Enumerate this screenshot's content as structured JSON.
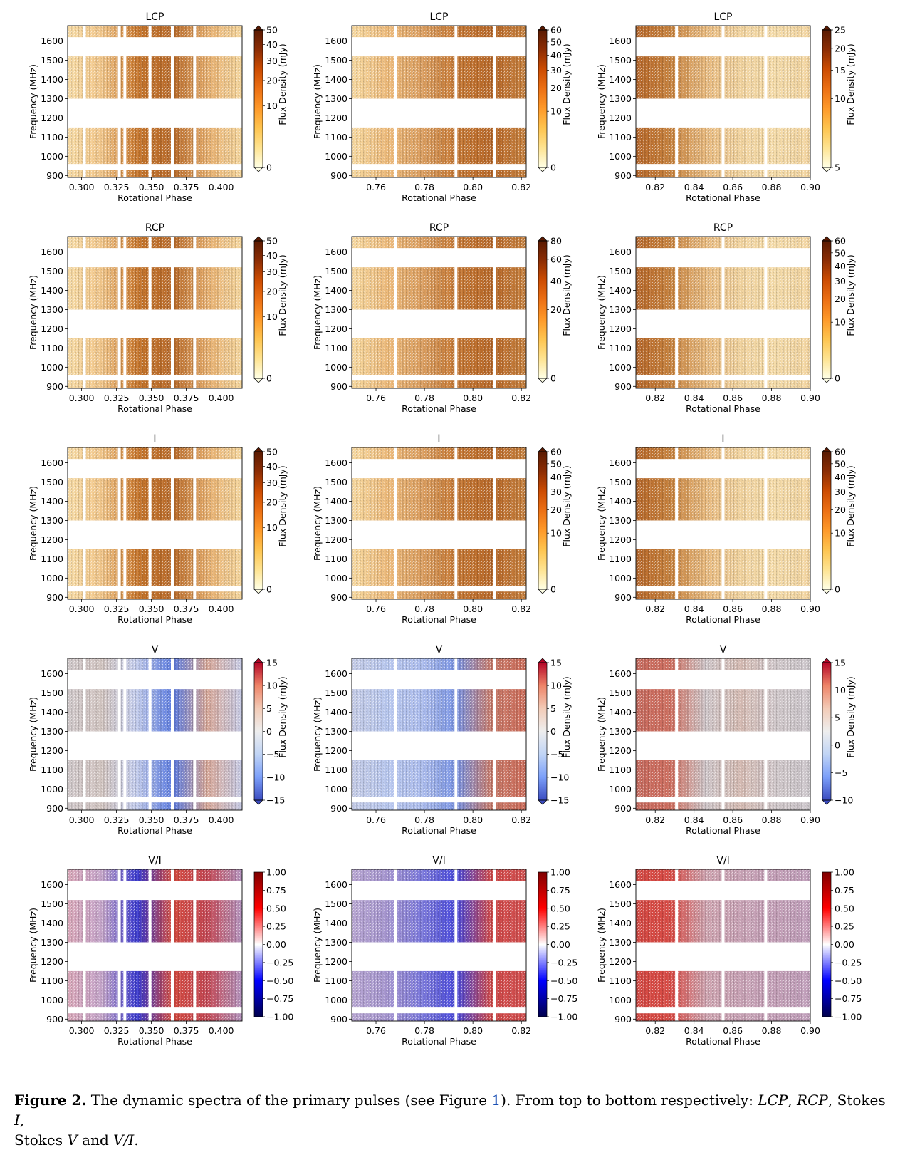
{
  "figure": {
    "rows": [
      {
        "title": "LCP",
        "cmap": "ylorbr",
        "panels": [
          {
            "xticks": [
              "0.300",
              "0.325",
              "0.350",
              "0.375",
              "0.400"
            ],
            "xlim": [
              0.29,
              0.415
            ],
            "xtickvals": [
              0.3,
              0.325,
              0.35,
              0.375,
              0.4
            ],
            "cbar": {
              "ticks": [
                "0",
                "10",
                "20",
                "30",
                "40",
                "50"
              ],
              "tickvals": [
                0,
                10,
                20,
                30,
                40,
                50
              ],
              "range": [
                0,
                50
              ],
              "scale": "pow"
            }
          },
          {
            "xticks": [
              "0.76",
              "0.78",
              "0.80",
              "0.82"
            ],
            "xlim": [
              0.75,
              0.822
            ],
            "xtickvals": [
              0.76,
              0.78,
              0.8,
              0.82
            ],
            "cbar": {
              "ticks": [
                "0",
                "10",
                "20",
                "30",
                "40",
                "50",
                "60"
              ],
              "tickvals": [
                0,
                10,
                20,
                30,
                40,
                50,
                60
              ],
              "range": [
                0,
                60
              ],
              "scale": "pow"
            }
          },
          {
            "xticks": [
              "0.82",
              "0.84",
              "0.86",
              "0.88",
              "0.90"
            ],
            "xlim": [
              0.81,
              0.9
            ],
            "xtickvals": [
              0.82,
              0.84,
              0.86,
              0.88,
              0.9
            ],
            "cbar": {
              "ticks": [
                "5",
                "10",
                "15",
                "20",
                "25"
              ],
              "tickvals": [
                5,
                10,
                15,
                20,
                25
              ],
              "range": [
                5,
                25
              ],
              "scale": "pow"
            }
          }
        ]
      },
      {
        "title": "RCP",
        "cmap": "ylorbr",
        "panels": [
          {
            "xticks": [
              "0.300",
              "0.325",
              "0.350",
              "0.375",
              "0.400"
            ],
            "xlim": [
              0.29,
              0.415
            ],
            "xtickvals": [
              0.3,
              0.325,
              0.35,
              0.375,
              0.4
            ],
            "cbar": {
              "ticks": [
                "0",
                "10",
                "20",
                "30",
                "40",
                "50"
              ],
              "tickvals": [
                0,
                10,
                20,
                30,
                40,
                50
              ],
              "range": [
                0,
                50
              ],
              "scale": "pow"
            }
          },
          {
            "xticks": [
              "0.76",
              "0.78",
              "0.80",
              "0.82"
            ],
            "xlim": [
              0.75,
              0.822
            ],
            "xtickvals": [
              0.76,
              0.78,
              0.8,
              0.82
            ],
            "cbar": {
              "ticks": [
                "0",
                "20",
                "40",
                "60",
                "80"
              ],
              "tickvals": [
                0,
                20,
                40,
                60,
                80
              ],
              "range": [
                0,
                80
              ],
              "scale": "pow"
            }
          },
          {
            "xticks": [
              "0.82",
              "0.84",
              "0.86",
              "0.88",
              "0.90"
            ],
            "xlim": [
              0.81,
              0.9
            ],
            "xtickvals": [
              0.82,
              0.84,
              0.86,
              0.88,
              0.9
            ],
            "cbar": {
              "ticks": [
                "0",
                "10",
                "20",
                "30",
                "40",
                "50",
                "60"
              ],
              "tickvals": [
                0,
                10,
                20,
                30,
                40,
                50,
                60
              ],
              "range": [
                0,
                60
              ],
              "scale": "pow"
            }
          }
        ]
      },
      {
        "title": "I",
        "cmap": "ylorbr",
        "panels": [
          {
            "xticks": [
              "0.300",
              "0.325",
              "0.350",
              "0.375",
              "0.400"
            ],
            "xlim": [
              0.29,
              0.415
            ],
            "xtickvals": [
              0.3,
              0.325,
              0.35,
              0.375,
              0.4
            ],
            "cbar": {
              "ticks": [
                "0",
                "10",
                "20",
                "30",
                "40",
                "50"
              ],
              "tickvals": [
                0,
                10,
                20,
                30,
                40,
                50
              ],
              "range": [
                0,
                50
              ],
              "scale": "pow"
            }
          },
          {
            "xticks": [
              "0.76",
              "0.78",
              "0.80",
              "0.82"
            ],
            "xlim": [
              0.75,
              0.822
            ],
            "xtickvals": [
              0.76,
              0.78,
              0.8,
              0.82
            ],
            "cbar": {
              "ticks": [
                "0",
                "10",
                "20",
                "30",
                "40",
                "50",
                "60"
              ],
              "tickvals": [
                0,
                10,
                20,
                30,
                40,
                50,
                60
              ],
              "range": [
                0,
                60
              ],
              "scale": "pow"
            }
          },
          {
            "xticks": [
              "0.82",
              "0.84",
              "0.86",
              "0.88",
              "0.90"
            ],
            "xlim": [
              0.81,
              0.9
            ],
            "xtickvals": [
              0.82,
              0.84,
              0.86,
              0.88,
              0.9
            ],
            "cbar": {
              "ticks": [
                "0",
                "10",
                "20",
                "30",
                "40",
                "50",
                "60"
              ],
              "tickvals": [
                0,
                10,
                20,
                30,
                40,
                50,
                60
              ],
              "range": [
                0,
                60
              ],
              "scale": "pow"
            }
          }
        ]
      },
      {
        "title": "V",
        "cmap": "coolwarm",
        "panels": [
          {
            "xticks": [
              "0.300",
              "0.325",
              "0.350",
              "0.375",
              "0.400"
            ],
            "xlim": [
              0.29,
              0.415
            ],
            "xtickvals": [
              0.3,
              0.325,
              0.35,
              0.375,
              0.4
            ],
            "cbar": {
              "ticks": [
                "−15",
                "−10",
                "−5",
                "0",
                "5",
                "10",
                "15"
              ],
              "tickvals": [
                -15,
                -10,
                -5,
                0,
                5,
                10,
                15
              ],
              "range": [
                -15,
                15
              ],
              "scale": "lin"
            }
          },
          {
            "xticks": [
              "0.76",
              "0.78",
              "0.80",
              "0.82"
            ],
            "xlim": [
              0.75,
              0.822
            ],
            "xtickvals": [
              0.76,
              0.78,
              0.8,
              0.82
            ],
            "cbar": {
              "ticks": [
                "−15",
                "−10",
                "−5",
                "0",
                "5",
                "10",
                "15"
              ],
              "tickvals": [
                -15,
                -10,
                -5,
                0,
                5,
                10,
                15
              ],
              "range": [
                -15,
                15
              ],
              "scale": "lin"
            }
          },
          {
            "xticks": [
              "0.82",
              "0.84",
              "0.86",
              "0.88",
              "0.90"
            ],
            "xlim": [
              0.81,
              0.9
            ],
            "xtickvals": [
              0.82,
              0.84,
              0.86,
              0.88,
              0.9
            ],
            "cbar": {
              "ticks": [
                "−10",
                "−5",
                "0",
                "5",
                "10",
                "15"
              ],
              "tickvals": [
                -10,
                -5,
                0,
                5,
                10,
                15
              ],
              "range": [
                -10,
                15
              ],
              "scale": "lin"
            }
          }
        ]
      },
      {
        "title": "V/I",
        "cmap": "seismic",
        "panels": [
          {
            "xticks": [
              "0.300",
              "0.325",
              "0.350",
              "0.375",
              "0.400"
            ],
            "xlim": [
              0.29,
              0.415
            ],
            "xtickvals": [
              0.3,
              0.325,
              0.35,
              0.375,
              0.4
            ],
            "cbar": {
              "ticks": [
                "−1.00",
                "−0.75",
                "−0.50",
                "−0.25",
                "0.00",
                "0.25",
                "0.50",
                "0.75",
                "1.00"
              ],
              "tickvals": [
                -1,
                -0.75,
                -0.5,
                -0.25,
                0,
                0.25,
                0.5,
                0.75,
                1
              ],
              "range": [
                -1,
                1
              ],
              "scale": "lin"
            }
          },
          {
            "xticks": [
              "0.76",
              "0.78",
              "0.80",
              "0.82"
            ],
            "xlim": [
              0.75,
              0.822
            ],
            "xtickvals": [
              0.76,
              0.78,
              0.8,
              0.82
            ],
            "cbar": {
              "ticks": [
                "−1.00",
                "−0.75",
                "−0.50",
                "−0.25",
                "0.00",
                "0.25",
                "0.50",
                "0.75",
                "1.00"
              ],
              "tickvals": [
                -1,
                -0.75,
                -0.5,
                -0.25,
                0,
                0.25,
                0.5,
                0.75,
                1
              ],
              "range": [
                -1,
                1
              ],
              "scale": "lin"
            }
          },
          {
            "xticks": [
              "0.82",
              "0.84",
              "0.86",
              "0.88",
              "0.90"
            ],
            "xlim": [
              0.81,
              0.9
            ],
            "xtickvals": [
              0.82,
              0.84,
              0.86,
              0.88,
              0.9
            ],
            "cbar": {
              "ticks": [
                "−1.00",
                "−0.75",
                "−0.50",
                "−0.25",
                "0.00",
                "0.25",
                "0.50",
                "0.75",
                "1.00"
              ],
              "tickvals": [
                -1,
                -0.75,
                -0.5,
                -0.25,
                0,
                0.25,
                0.5,
                0.75,
                1
              ],
              "range": [
                -1,
                1
              ],
              "scale": "lin"
            }
          }
        ]
      }
    ],
    "yticks": [
      "900",
      "1000",
      "1100",
      "1200",
      "1300",
      "1400",
      "1500",
      "1600"
    ],
    "ytickvals": [
      900,
      1000,
      1100,
      1200,
      1300,
      1400,
      1500,
      1600
    ],
    "ylim": [
      890,
      1680
    ],
    "xlabel": "Rotational Phase",
    "ylabel": "Frequency (MHz)",
    "cbar_label": "Flux Density (mJy)"
  },
  "chart_data": {
    "type": "heatmap",
    "title": "Dynamic spectra of the primary pulses",
    "xlabel": "Rotational Phase",
    "ylabel": "Frequency (MHz)",
    "ylim": [
      890,
      1680
    ],
    "masked_bands_mhz": [
      [
        930,
        960
      ],
      [
        1150,
        1300
      ],
      [
        1520,
        1620
      ]
    ],
    "panels": [
      {
        "stokes": "LCP",
        "pulse": 1,
        "xlim": [
          0.29,
          0.415
        ],
        "colorbar_range": [
          0,
          50
        ]
      },
      {
        "stokes": "LCP",
        "pulse": 2,
        "xlim": [
          0.75,
          0.822
        ],
        "colorbar_range": [
          0,
          60
        ]
      },
      {
        "stokes": "LCP",
        "pulse": 3,
        "xlim": [
          0.81,
          0.9
        ],
        "colorbar_range": [
          5,
          25
        ]
      },
      {
        "stokes": "RCP",
        "pulse": 1,
        "xlim": [
          0.29,
          0.415
        ],
        "colorbar_range": [
          0,
          50
        ]
      },
      {
        "stokes": "RCP",
        "pulse": 2,
        "xlim": [
          0.75,
          0.822
        ],
        "colorbar_range": [
          0,
          80
        ]
      },
      {
        "stokes": "RCP",
        "pulse": 3,
        "xlim": [
          0.81,
          0.9
        ],
        "colorbar_range": [
          0,
          60
        ]
      },
      {
        "stokes": "I",
        "pulse": 1,
        "xlim": [
          0.29,
          0.415
        ],
        "colorbar_range": [
          0,
          50
        ]
      },
      {
        "stokes": "I",
        "pulse": 2,
        "xlim": [
          0.75,
          0.822
        ],
        "colorbar_range": [
          0,
          60
        ]
      },
      {
        "stokes": "I",
        "pulse": 3,
        "xlim": [
          0.81,
          0.9
        ],
        "colorbar_range": [
          0,
          60
        ]
      },
      {
        "stokes": "V",
        "pulse": 1,
        "xlim": [
          0.29,
          0.415
        ],
        "colorbar_range": [
          -15,
          15
        ]
      },
      {
        "stokes": "V",
        "pulse": 2,
        "xlim": [
          0.75,
          0.822
        ],
        "colorbar_range": [
          -15,
          15
        ]
      },
      {
        "stokes": "V",
        "pulse": 3,
        "xlim": [
          0.81,
          0.9
        ],
        "colorbar_range": [
          -10,
          15
        ]
      },
      {
        "stokes": "V/I",
        "pulse": 1,
        "xlim": [
          0.29,
          0.415
        ],
        "colorbar_range": [
          -1,
          1
        ]
      },
      {
        "stokes": "V/I",
        "pulse": 2,
        "xlim": [
          0.75,
          0.822
        ],
        "colorbar_range": [
          -1,
          1
        ]
      },
      {
        "stokes": "V/I",
        "pulse": 3,
        "xlim": [
          0.81,
          0.9
        ],
        "colorbar_range": [
          -1,
          1
        ]
      }
    ]
  },
  "caption": {
    "label": "Figure 2.",
    "text_1": "The dynamic spectra of the primary pulses (see Figure",
    "ref": "1",
    "text_2": "). From top to bottom respectively:",
    "lcp": "LCP",
    "sep1": ",",
    "rcp": "RCP",
    "sep2": ", Stokes",
    "stokes_i": "I",
    "sep3": ",",
    "text_3": "Stokes",
    "stokes_v": "V",
    "text_4": "and",
    "v_over_i": "V/I",
    "end": "."
  }
}
